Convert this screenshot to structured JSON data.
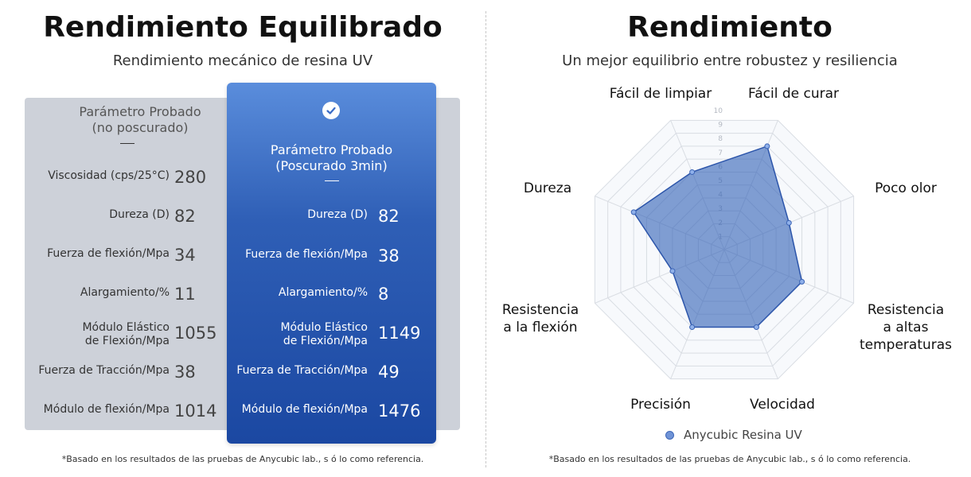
{
  "left": {
    "title": "Rendimiento Equilibrado",
    "subtitle": "Rendimiento mecánico de resina UV",
    "gray_header_line1": "Parámetro Probado",
    "gray_header_line2": "(no poscurado)",
    "blue_header_line1": "Parámetro Probado",
    "blue_header_line2": "(Poscurado 3min)",
    "gray_rows": [
      {
        "label": "Viscosidad (cps/25°C)",
        "value": "280"
      },
      {
        "label": "Dureza (D)",
        "value": "82"
      },
      {
        "label": "Fuerza de flexión/Mpa",
        "value": "34"
      },
      {
        "label": "Alargamiento/%",
        "value": "11"
      },
      {
        "label_line1": "Módulo Elástico",
        "label_line2": "de Flexión/Mpa",
        "value": "1055"
      },
      {
        "label": "Fuerza de Tracción/Mpa",
        "value": "38"
      },
      {
        "label": "Módulo de flexión/Mpa",
        "value": "1014"
      }
    ],
    "blue_rows": [
      {
        "label": "Dureza (D)",
        "value": "82"
      },
      {
        "label": "Fuerza de flexión/Mpa",
        "value": "38"
      },
      {
        "label": "Alargamiento/%",
        "value": "8"
      },
      {
        "label_line1": "Módulo Elástico",
        "label_line2": "de Flexión/Mpa",
        "value": "1149"
      },
      {
        "label": "Fuerza de Tracción/Mpa",
        "value": "49"
      },
      {
        "label": "Módulo de flexión/Mpa",
        "value": "1476"
      }
    ],
    "footnote": "*Basado en los resultados de las pruebas de Anycubic lab., s ó lo como referencia.",
    "icon": "check-circle-icon"
  },
  "right": {
    "title": "Rendimiento",
    "subtitle": "Un mejor equilibrio entre robustez y resiliencia",
    "footnote": "*Basado en los resultados de las pruebas de Anycubic lab., s ó lo como referencia."
  },
  "chart_data": {
    "type": "radar",
    "axes": [
      "Fácil de curar",
      "Poco olor",
      "Resistencia a altas temperaturas",
      "Velocidad",
      "Precisión",
      "Resistencia a la flexión",
      "Dureza",
      "Fácil de limpiar"
    ],
    "axis_label_lines": [
      [
        "Fácil de curar"
      ],
      [
        "Poco olor"
      ],
      [
        "Resistencia",
        "a altas",
        "temperaturas"
      ],
      [
        "Velocidad"
      ],
      [
        "Precisión"
      ],
      [
        "Resistencia",
        "a la flexión"
      ],
      [
        "Dureza"
      ],
      [
        "Fácil de limpiar"
      ]
    ],
    "scale_ticks": [
      "1",
      "2",
      "3",
      "4",
      "5",
      "6",
      "7",
      "8",
      "9",
      "10"
    ],
    "range": [
      0,
      10
    ],
    "series": [
      {
        "name": "Anycubic Resina UV",
        "values": [
          8.0,
          5.0,
          6.0,
          6.0,
          6.0,
          4.0,
          7.0,
          6.0
        ]
      }
    ],
    "colors": {
      "fill": "#2f5fb6",
      "stroke": "#2c55aa",
      "grid": "#d9dde3"
    }
  }
}
